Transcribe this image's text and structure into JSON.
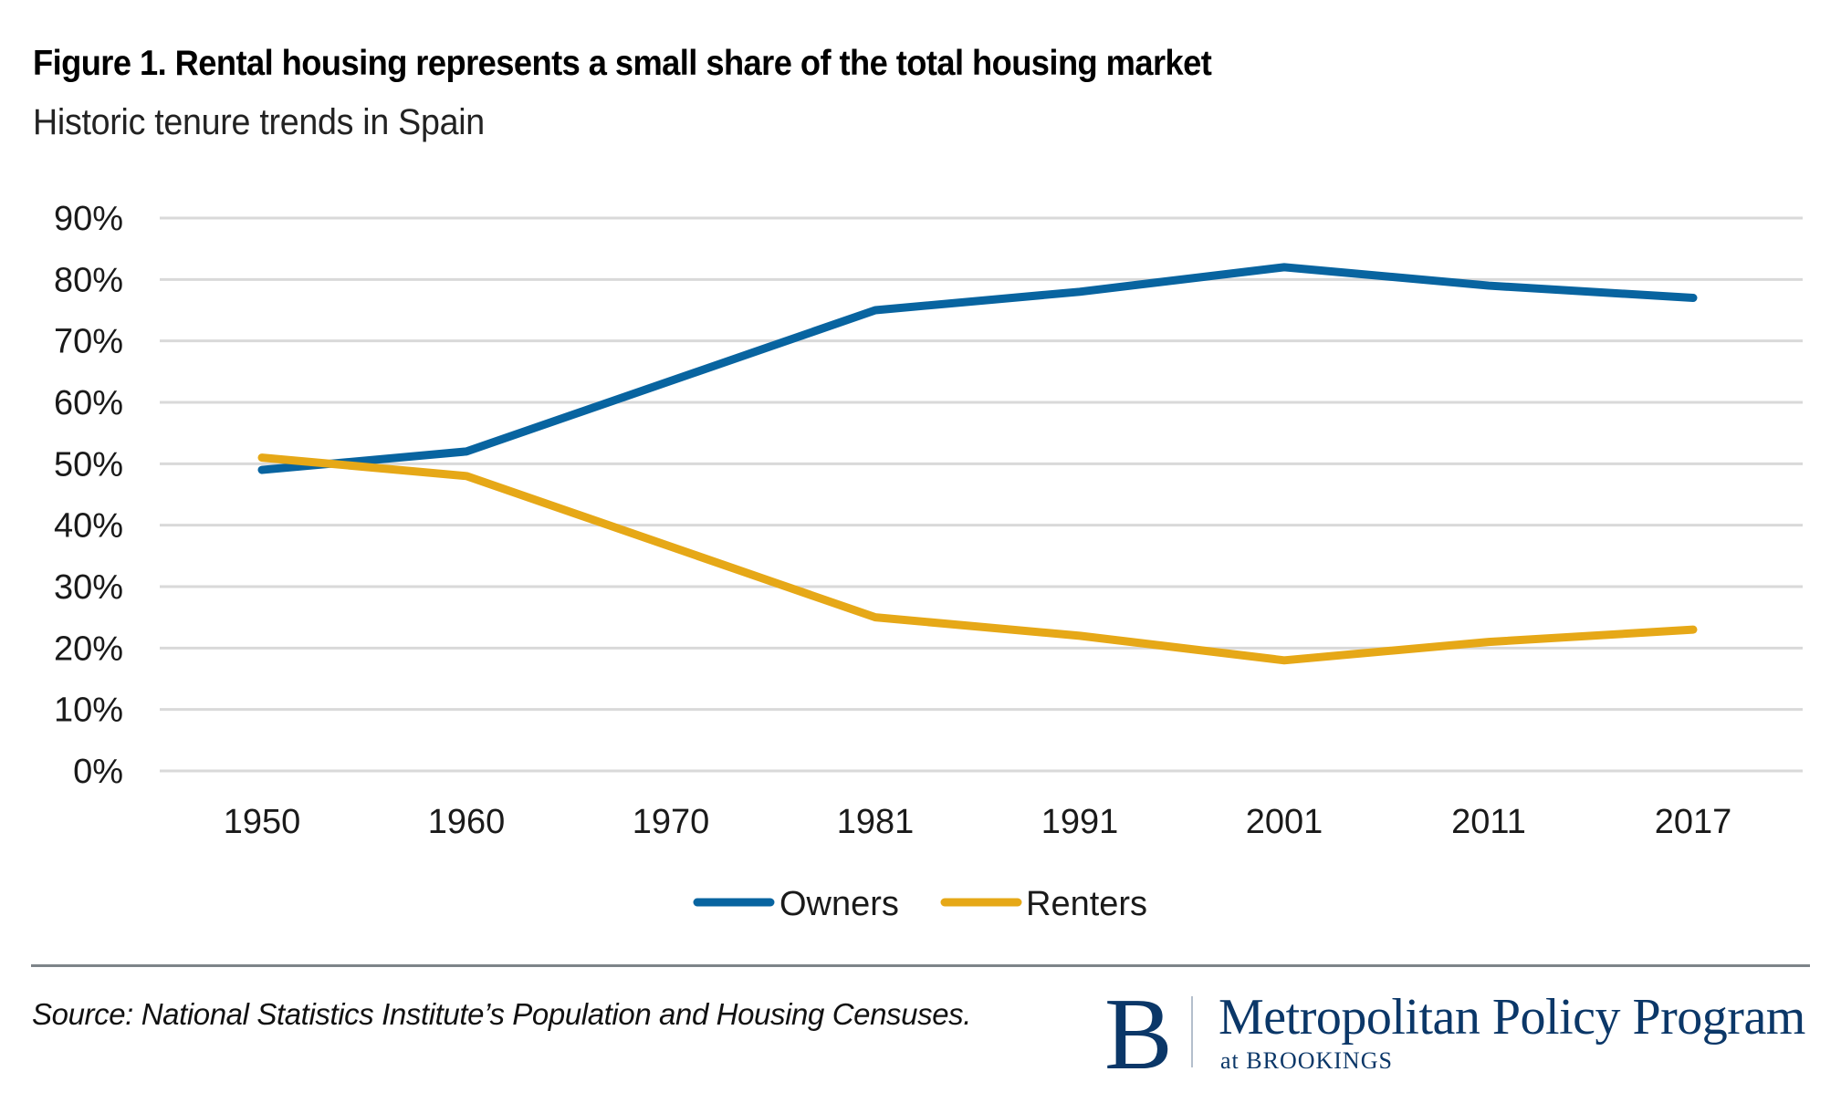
{
  "header": {
    "title": "Figure 1. Rental housing represents a small share of the total housing market",
    "subtitle": "Historic tenure trends in Spain"
  },
  "footer": {
    "source": "Source: National Statistics Institute’s Population and Housing Censuses.",
    "logo_letter": "B",
    "logo_name": "Metropolitan Policy Program",
    "logo_sub": "at BROOKINGS"
  },
  "colors": {
    "owners": "#0864a0",
    "renters": "#e6a817",
    "gridline": "#d9d9d9",
    "brand": "#0b3768"
  },
  "chart_data": {
    "type": "line",
    "title": "Figure 1. Rental housing represents a small share of the total housing market",
    "subtitle": "Historic tenure trends in Spain",
    "xlabel": "",
    "ylabel": "",
    "categories": [
      "1950",
      "1960",
      "1970",
      "1981",
      "1991",
      "2001",
      "2011",
      "2017"
    ],
    "y_ticks": [
      "0%",
      "10%",
      "20%",
      "30%",
      "40%",
      "50%",
      "60%",
      "70%",
      "80%",
      "90%"
    ],
    "ylim": [
      0,
      90
    ],
    "grid": true,
    "legend_position": "bottom-center",
    "series": [
      {
        "name": "Owners",
        "color": "#0864a0",
        "values": [
          49,
          52,
          null,
          75,
          78,
          82,
          79,
          77
        ]
      },
      {
        "name": "Renters",
        "color": "#e6a817",
        "values": [
          51,
          48,
          null,
          25,
          22,
          18,
          21,
          23
        ]
      }
    ],
    "note": "1970 has no data point; lines connect 1960 directly to 1981"
  }
}
